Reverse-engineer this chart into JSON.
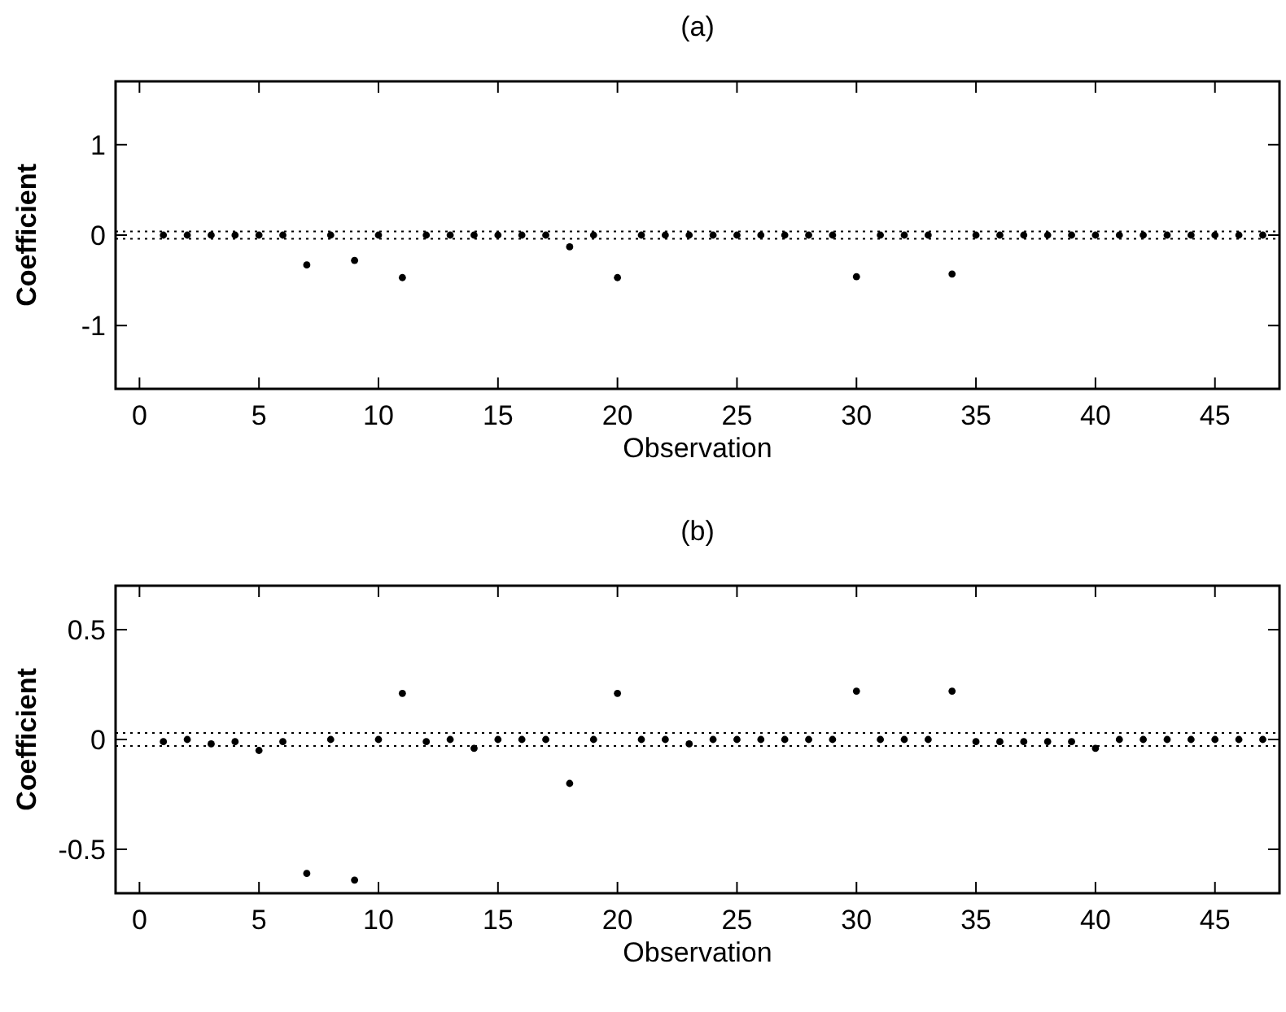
{
  "chart_data": [
    {
      "type": "scatter",
      "title": "(a)",
      "xlabel": "Observation",
      "ylabel": "Coefficient",
      "marker": "circle",
      "grid": false,
      "xlim": [
        -1,
        47.7
      ],
      "xticks": [
        0,
        5,
        10,
        15,
        20,
        25,
        30,
        35,
        40,
        45
      ],
      "ylim": [
        -1.7,
        1.7
      ],
      "yticks": [
        -1,
        0,
        1
      ],
      "x": [
        1,
        2,
        3,
        4,
        5,
        6,
        7,
        8,
        9,
        10,
        11,
        12,
        13,
        14,
        15,
        16,
        17,
        18,
        19,
        20,
        21,
        22,
        23,
        24,
        25,
        26,
        27,
        28,
        29,
        30,
        31,
        32,
        33,
        34,
        35,
        36,
        37,
        38,
        39,
        40,
        41,
        42,
        43,
        44,
        45,
        46,
        47
      ],
      "series": [
        {
          "color": "#000000",
          "values": [
            0,
            0,
            0,
            0,
            0,
            0,
            -0.33,
            0,
            -0.28,
            0,
            -0.47,
            0,
            0,
            0,
            0,
            0,
            0,
            -0.13,
            0,
            -0.47,
            0,
            0,
            0,
            0,
            0,
            0,
            0,
            0,
            0,
            -0.46,
            0,
            0,
            0,
            -0.43,
            0,
            0,
            0,
            0,
            0,
            0,
            0,
            0,
            0,
            0,
            0,
            0,
            0
          ]
        }
      ],
      "ref_lines": [
        {
          "axis": "y",
          "value": 0.04,
          "color": "#000000",
          "line_style": "dotted"
        },
        {
          "axis": "y",
          "value": -0.04,
          "color": "#000000",
          "line_style": "dotted"
        }
      ]
    },
    {
      "type": "scatter",
      "title": "(b)",
      "xlabel": "Observation",
      "ylabel": "Coefficient",
      "marker": "circle",
      "grid": false,
      "xlim": [
        -1,
        47.7
      ],
      "xticks": [
        0,
        5,
        10,
        15,
        20,
        25,
        30,
        35,
        40,
        45
      ],
      "ylim": [
        -0.7,
        0.7
      ],
      "yticks": [
        -0.5,
        0,
        0.5
      ],
      "x": [
        1,
        2,
        3,
        4,
        5,
        6,
        7,
        8,
        9,
        10,
        11,
        12,
        13,
        14,
        15,
        16,
        17,
        18,
        19,
        20,
        21,
        22,
        23,
        24,
        25,
        26,
        27,
        28,
        29,
        30,
        31,
        32,
        33,
        34,
        35,
        36,
        37,
        38,
        39,
        40,
        41,
        42,
        43,
        44,
        45,
        46,
        47
      ],
      "series": [
        {
          "color": "#000000",
          "values": [
            -0.01,
            0,
            -0.02,
            -0.01,
            -0.05,
            -0.01,
            -0.61,
            0,
            -0.64,
            0,
            0.21,
            -0.01,
            0,
            -0.04,
            0,
            0,
            0,
            -0.2,
            0,
            0.21,
            0,
            0,
            -0.02,
            0,
            0,
            0,
            0,
            0,
            0,
            0.22,
            0,
            0,
            0,
            0.22,
            -0.01,
            -0.01,
            -0.01,
            -0.01,
            -0.01,
            -0.04,
            0,
            0,
            0,
            0,
            0,
            0,
            0
          ]
        }
      ],
      "ref_lines": [
        {
          "axis": "y",
          "value": 0.03,
          "color": "#000000",
          "line_style": "dotted"
        },
        {
          "axis": "y",
          "value": -0.03,
          "color": "#000000",
          "line_style": "dotted"
        }
      ]
    }
  ]
}
